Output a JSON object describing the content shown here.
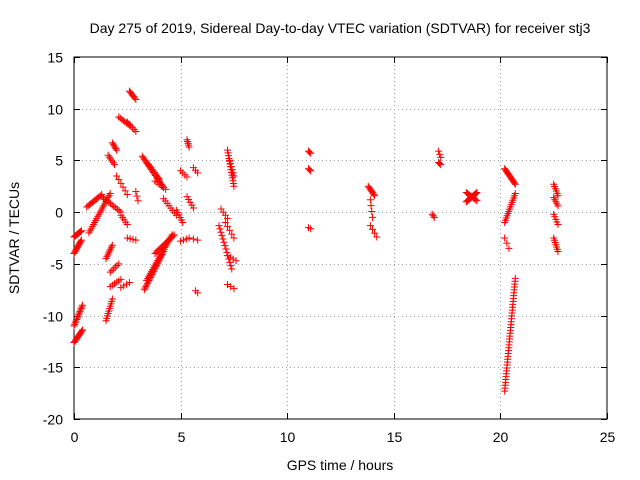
{
  "chart_data": {
    "type": "scatter",
    "title": "Day 275 of 2019, Sidereal Day-to-day VTEC variation (SDTVAR) for receiver stj3",
    "xlabel": "GPS time / hours",
    "ylabel": "SDTVAR / TECUs",
    "xlim": [
      0,
      25
    ],
    "ylim": [
      -20,
      15
    ],
    "xticks": [
      0,
      5,
      10,
      15,
      20,
      25
    ],
    "yticks": [
      -20,
      -15,
      -10,
      -5,
      0,
      5,
      10,
      15
    ],
    "xtick_labels": [
      "0",
      "5",
      "10",
      "15",
      "20",
      "25"
    ],
    "ytick_labels": [
      "-20",
      "-15",
      "-10",
      "-5",
      "0",
      "5",
      "10",
      "15"
    ],
    "grid": true,
    "marker": "+",
    "series_color": "#ff0000",
    "segments": [
      {
        "x0": 0.0,
        "x1": 0.35,
        "y0": -2.4,
        "y1": -1.8,
        "n": 10
      },
      {
        "x0": 0.0,
        "x1": 0.35,
        "y0": -4.0,
        "y1": -2.7,
        "n": 12
      },
      {
        "x0": 0.0,
        "x1": 0.4,
        "y0": -11.0,
        "y1": -9.0,
        "n": 14
      },
      {
        "x0": 0.0,
        "x1": 0.4,
        "y0": -12.6,
        "y1": -11.4,
        "n": 12
      },
      {
        "x0": 0.7,
        "x1": 1.7,
        "y0": -2.0,
        "y1": 1.8,
        "n": 20
      },
      {
        "x0": 0.6,
        "x1": 1.3,
        "y0": 0.5,
        "y1": 1.7,
        "n": 12
      },
      {
        "x0": 1.3,
        "x1": 2.2,
        "y0": 1.5,
        "y1": 0.0,
        "n": 12
      },
      {
        "x0": 1.6,
        "x1": 1.9,
        "y0": 5.5,
        "y1": 4.6,
        "n": 6
      },
      {
        "x0": 1.8,
        "x1": 2.0,
        "y0": 6.7,
        "y1": 6.0,
        "n": 6
      },
      {
        "x0": 1.5,
        "x1": 1.8,
        "y0": -4.5,
        "y1": -3.2,
        "n": 8
      },
      {
        "x0": 1.7,
        "x1": 2.1,
        "y0": -5.8,
        "y1": -5.0,
        "n": 6
      },
      {
        "x0": 1.7,
        "x1": 2.2,
        "y0": -7.2,
        "y1": -6.5,
        "n": 6
      },
      {
        "x0": 1.5,
        "x1": 1.8,
        "y0": -10.5,
        "y1": -8.4,
        "n": 10
      },
      {
        "x0": 2.0,
        "x1": 2.5,
        "y0": 3.5,
        "y1": 1.7,
        "n": 6
      },
      {
        "x0": 2.2,
        "x1": 2.5,
        "y0": -0.3,
        "y1": -1.2,
        "n": 5
      },
      {
        "x0": 2.1,
        "x1": 2.6,
        "y0": 9.2,
        "y1": 8.4,
        "n": 8
      },
      {
        "x0": 2.6,
        "x1": 2.9,
        "y0": 11.7,
        "y1": 10.9,
        "n": 7
      },
      {
        "x0": 2.5,
        "x1": 2.9,
        "y0": 8.7,
        "y1": 7.8,
        "n": 6
      },
      {
        "x0": 2.9,
        "x1": 3.0,
        "y0": 2.0,
        "y1": 1.1,
        "n": 3
      },
      {
        "x0": 2.5,
        "x1": 2.9,
        "y0": -2.5,
        "y1": -2.7,
        "n": 4
      },
      {
        "x0": 2.2,
        "x1": 2.6,
        "y0": -7.3,
        "y1": -6.8,
        "n": 4
      },
      {
        "x0": 3.2,
        "x1": 4.2,
        "y0": 5.4,
        "y1": 2.4,
        "n": 22
      },
      {
        "x0": 3.5,
        "x1": 4.0,
        "y0": 4.6,
        "y1": 3.2,
        "n": 10
      },
      {
        "x0": 3.8,
        "x1": 4.3,
        "y0": 3.0,
        "y1": 2.2,
        "n": 6
      },
      {
        "x0": 3.3,
        "x1": 4.2,
        "y0": -7.5,
        "y1": -3.8,
        "n": 26
      },
      {
        "x0": 3.4,
        "x1": 4.6,
        "y0": -6.6,
        "y1": -2.2,
        "n": 26
      },
      {
        "x0": 3.8,
        "x1": 4.7,
        "y0": -4.0,
        "y1": -2.2,
        "n": 16
      },
      {
        "x0": 4.2,
        "x1": 4.8,
        "y0": 1.3,
        "y1": -0.3,
        "n": 8
      },
      {
        "x0": 4.8,
        "x1": 5.1,
        "y0": 0.2,
        "y1": -1.0,
        "n": 6
      },
      {
        "x0": 5.0,
        "x1": 5.3,
        "y0": 4.0,
        "y1": 3.4,
        "n": 4
      },
      {
        "x0": 5.3,
        "x1": 5.4,
        "y0": 7.0,
        "y1": 6.3,
        "n": 5
      },
      {
        "x0": 5.3,
        "x1": 5.6,
        "y0": 1.5,
        "y1": 0.4,
        "n": 5
      },
      {
        "x0": 5.0,
        "x1": 5.4,
        "y0": -2.8,
        "y1": -2.5,
        "n": 4
      },
      {
        "x0": 5.6,
        "x1": 5.8,
        "y0": 4.3,
        "y1": 3.8,
        "n": 3
      },
      {
        "x0": 5.6,
        "x1": 5.8,
        "y0": -2.6,
        "y1": -2.7,
        "n": 2
      },
      {
        "x0": 5.7,
        "x1": 5.8,
        "y0": -7.6,
        "y1": -7.8,
        "n": 2
      },
      {
        "x0": 6.9,
        "x1": 7.2,
        "y0": 0.3,
        "y1": -0.6,
        "n": 4
      },
      {
        "x0": 6.8,
        "x1": 7.4,
        "y0": -1.3,
        "y1": -5.5,
        "n": 14
      },
      {
        "x0": 7.2,
        "x1": 7.5,
        "y0": 6.0,
        "y1": 2.5,
        "n": 14
      },
      {
        "x0": 7.3,
        "x1": 7.5,
        "y0": 5.0,
        "y1": 3.5,
        "n": 6
      },
      {
        "x0": 7.1,
        "x1": 7.5,
        "y0": -1.0,
        "y1": -2.5,
        "n": 5
      },
      {
        "x0": 7.2,
        "x1": 7.6,
        "y0": -4.2,
        "y1": -4.7,
        "n": 4
      },
      {
        "x0": 7.2,
        "x1": 7.5,
        "y0": -7.0,
        "y1": -7.4,
        "n": 3
      },
      {
        "x0": 11.0,
        "x1": 11.1,
        "y0": 5.9,
        "y1": 5.7,
        "n": 3
      },
      {
        "x0": 11.0,
        "x1": 11.1,
        "y0": 4.2,
        "y1": 4.0,
        "n": 3
      },
      {
        "x0": 11.0,
        "x1": 11.1,
        "y0": -1.5,
        "y1": -1.6,
        "n": 2
      },
      {
        "x0": 13.8,
        "x1": 14.1,
        "y0": 2.5,
        "y1": 1.6,
        "n": 8
      },
      {
        "x0": 13.9,
        "x1": 14.0,
        "y0": 1.2,
        "y1": -0.5,
        "n": 4
      },
      {
        "x0": 13.9,
        "x1": 14.2,
        "y0": -1.3,
        "y1": -2.4,
        "n": 4
      },
      {
        "x0": 16.8,
        "x1": 16.9,
        "y0": -0.2,
        "y1": -0.5,
        "n": 3
      },
      {
        "x0": 17.1,
        "x1": 17.2,
        "y0": 5.9,
        "y1": 5.3,
        "n": 3
      },
      {
        "x0": 17.1,
        "x1": 17.2,
        "y0": 4.8,
        "y1": 4.6,
        "n": 3
      },
      {
        "x0": 18.4,
        "x1": 18.9,
        "y0": 1.0,
        "y1": 1.9,
        "n": 14
      },
      {
        "x0": 18.4,
        "x1": 18.9,
        "y0": 1.9,
        "y1": 1.1,
        "n": 10
      },
      {
        "x0": 20.2,
        "x1": 20.7,
        "y0": 4.2,
        "y1": 2.7,
        "n": 14
      },
      {
        "x0": 20.2,
        "x1": 20.7,
        "y0": -1.0,
        "y1": 1.8,
        "n": 14
      },
      {
        "x0": 20.2,
        "x1": 20.4,
        "y0": -2.5,
        "y1": -3.5,
        "n": 3
      },
      {
        "x0": 20.2,
        "x1": 20.7,
        "y0": -17.3,
        "y1": -6.4,
        "n": 40
      },
      {
        "x0": 22.5,
        "x1": 22.7,
        "y0": 2.7,
        "y1": 1.6,
        "n": 6
      },
      {
        "x0": 22.5,
        "x1": 22.7,
        "y0": 1.4,
        "y1": 0.6,
        "n": 5
      },
      {
        "x0": 22.5,
        "x1": 22.7,
        "y0": -0.2,
        "y1": -1.2,
        "n": 5
      },
      {
        "x0": 22.5,
        "x1": 22.7,
        "y0": -2.5,
        "y1": -3.8,
        "n": 7
      }
    ]
  }
}
